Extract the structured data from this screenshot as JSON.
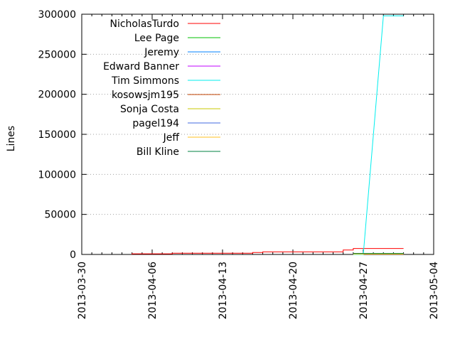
{
  "chart_data": {
    "type": "line",
    "title": "",
    "xlabel": "",
    "ylabel": "Lines",
    "ylim": [
      0,
      300000
    ],
    "xlim": [
      "2013-03-30",
      "2013-05-04"
    ],
    "yticks": [
      0,
      50000,
      100000,
      150000,
      200000,
      250000,
      300000
    ],
    "xticks": [
      "2013-03-30",
      "2013-04-06",
      "2013-04-13",
      "2013-04-20",
      "2013-04-27",
      "2013-05-04"
    ],
    "grid": true,
    "legend_position": "top-left",
    "series": [
      {
        "name": "NicholasTurdo",
        "color": "#ff0000",
        "points": [
          [
            "2013-04-04",
            0
          ],
          [
            "2013-04-04",
            800
          ],
          [
            "2013-04-08",
            800
          ],
          [
            "2013-04-08",
            1500
          ],
          [
            "2013-04-16",
            1500
          ],
          [
            "2013-04-16",
            2500
          ],
          [
            "2013-04-17",
            2500
          ],
          [
            "2013-04-17",
            3200
          ],
          [
            "2013-04-25",
            3200
          ],
          [
            "2013-04-25",
            5500
          ],
          [
            "2013-04-26",
            5500
          ],
          [
            "2013-04-26",
            7500
          ],
          [
            "2013-05-01",
            7500
          ]
        ]
      },
      {
        "name": "Lee Page",
        "color": "#00c000",
        "points": [
          [
            "2013-04-26",
            1000
          ],
          [
            "2013-05-01",
            1000
          ]
        ]
      },
      {
        "name": "Jeremy",
        "color": "#0080ff",
        "points": [
          [
            "2013-04-26",
            700
          ],
          [
            "2013-05-01",
            700
          ]
        ]
      },
      {
        "name": "Edward Banner",
        "color": "#c000ff",
        "points": [
          [
            "2013-04-26",
            900
          ],
          [
            "2013-05-01",
            900
          ]
        ]
      },
      {
        "name": "Tim Simmons",
        "color": "#00eeee",
        "points": [
          [
            "2013-04-26",
            0
          ],
          [
            "2013-04-27",
            0
          ],
          [
            "2013-04-29",
            298000
          ],
          [
            "2013-05-01",
            298000
          ]
        ]
      },
      {
        "name": "kosowsjm195",
        "color": "#c04000",
        "points": [
          [
            "2013-04-26",
            600
          ],
          [
            "2013-05-01",
            600
          ]
        ]
      },
      {
        "name": "Sonja Costa",
        "color": "#c8c800",
        "points": [
          [
            "2013-04-26",
            500
          ],
          [
            "2013-05-01",
            500
          ]
        ]
      },
      {
        "name": "pagel194",
        "color": "#4169e1",
        "points": [
          [
            "2013-04-26",
            1200
          ],
          [
            "2013-05-01",
            1200
          ]
        ]
      },
      {
        "name": "Jeff",
        "color": "#ffc020",
        "points": [
          [
            "2013-04-26",
            400
          ],
          [
            "2013-05-01",
            400
          ]
        ]
      },
      {
        "name": "Bill Kline",
        "color": "#008040",
        "points": [
          [
            "2013-04-26",
            1300
          ],
          [
            "2013-05-01",
            1300
          ]
        ]
      }
    ]
  }
}
